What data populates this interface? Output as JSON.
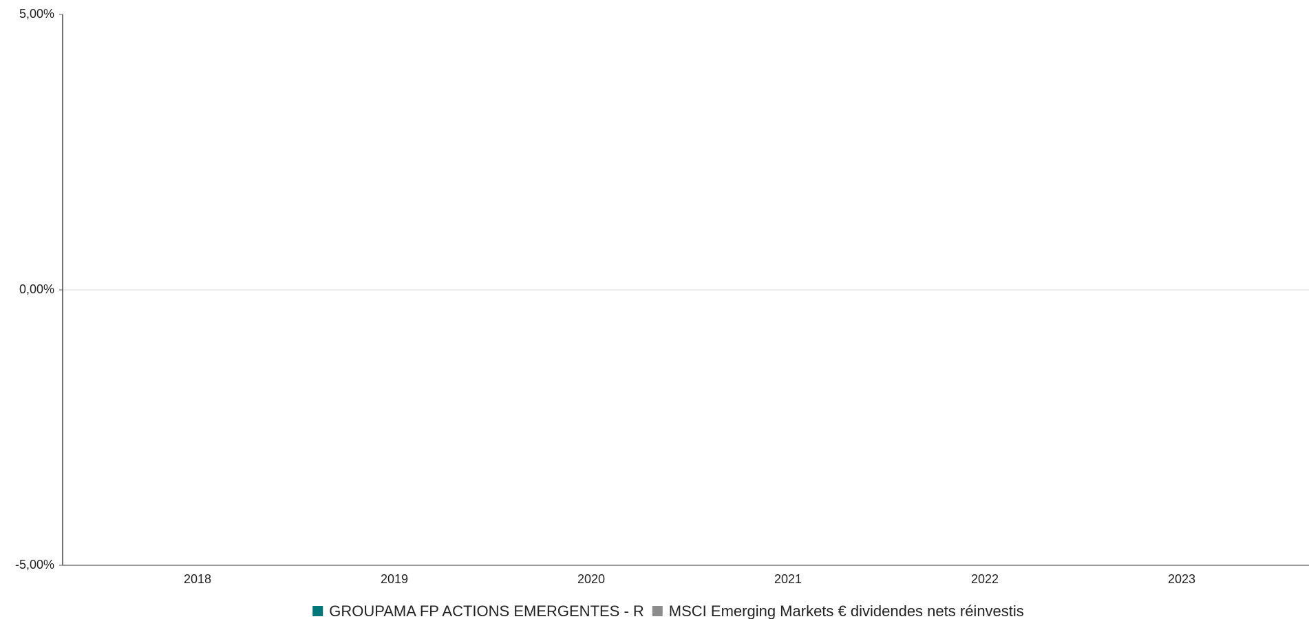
{
  "chart_data": {
    "type": "bar",
    "categories": [
      "2018",
      "2019",
      "2020",
      "2021",
      "2022",
      "2023"
    ],
    "series": [
      {
        "name": "GROUPAMA FP ACTIONS EMERGENTES - R",
        "color": "#00787a",
        "values": [
          null,
          null,
          null,
          null,
          null,
          null
        ]
      },
      {
        "name": "MSCI Emerging Markets € dividendes nets réinvestis",
        "color": "#8c8c8c",
        "values": [
          null,
          null,
          null,
          null,
          null,
          null
        ]
      }
    ],
    "ylim": [
      -5,
      5
    ],
    "yticks": [
      {
        "value": -5,
        "label": "-5,00%"
      },
      {
        "value": 0,
        "label": "0,00%"
      },
      {
        "value": 5,
        "label": "5,00%"
      }
    ],
    "grid": true,
    "legend": "bottom"
  }
}
